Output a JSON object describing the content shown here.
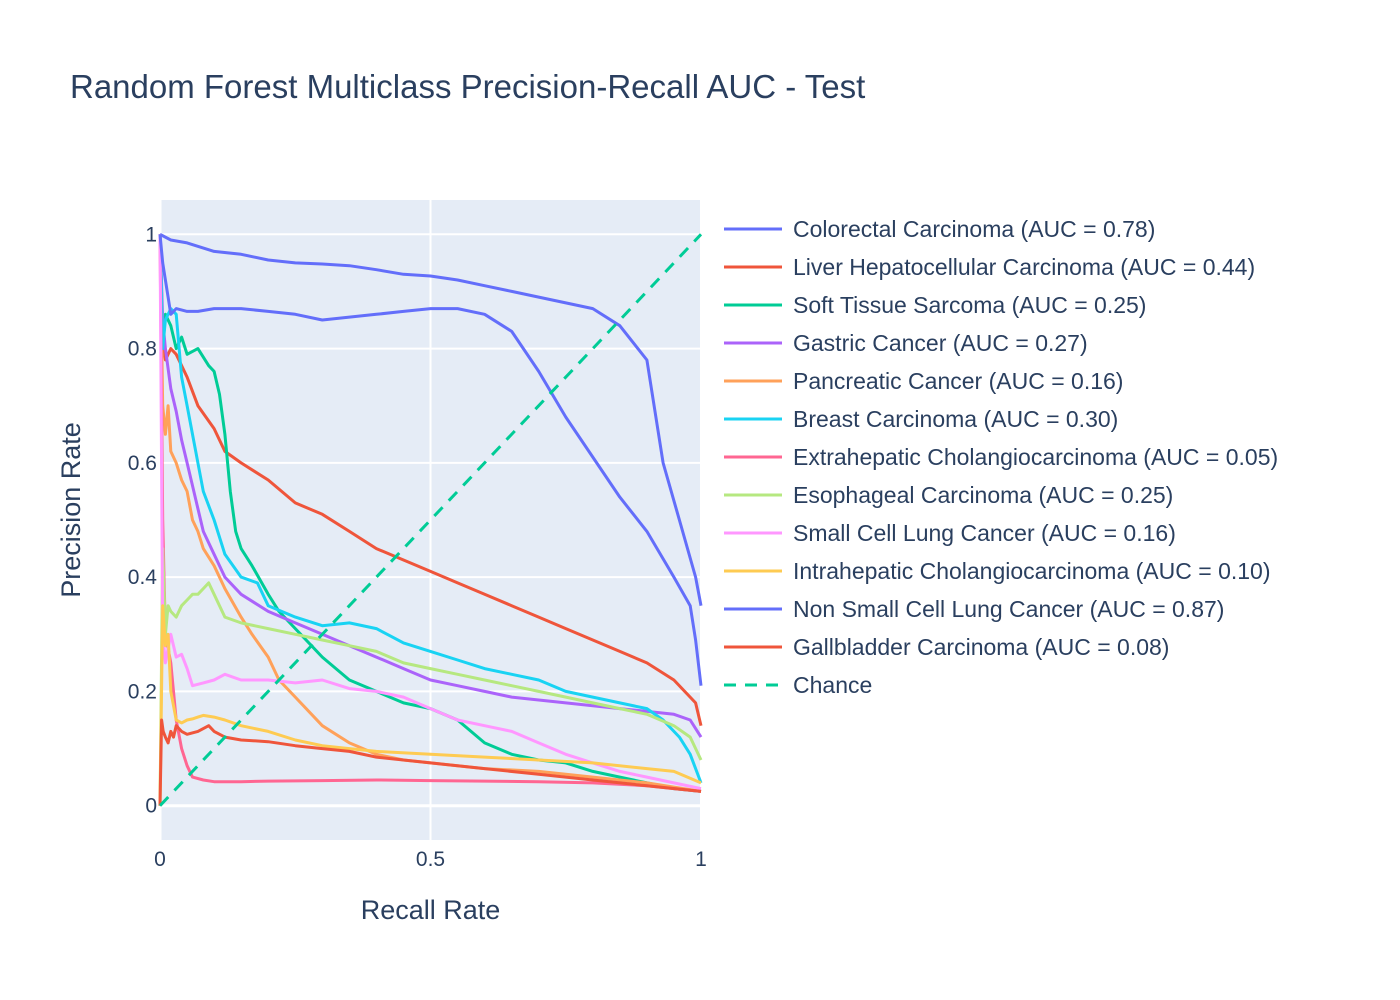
{
  "chart_data": {
    "type": "line",
    "title": "Random Forest Multiclass Precision-Recall AUC - Test",
    "xlabel": "Recall Rate",
    "ylabel": "Precision Rate",
    "xlim": [
      0,
      1
    ],
    "ylim": [
      -0.06,
      1.06
    ],
    "xticks": [
      {
        "value": 0,
        "label": "0"
      },
      {
        "value": 0.5,
        "label": "0.5"
      },
      {
        "value": 1,
        "label": "1"
      }
    ],
    "yticks": [
      {
        "value": 0,
        "label": "0"
      },
      {
        "value": 0.2,
        "label": "0.2"
      },
      {
        "value": 0.4,
        "label": "0.4"
      },
      {
        "value": 0.6,
        "label": "0.6"
      },
      {
        "value": 0.8,
        "label": "0.8"
      },
      {
        "value": 1,
        "label": "1"
      }
    ],
    "grid": true,
    "legend_position": "right",
    "plot_background": "#e5ecf6",
    "series": [
      {
        "name": "Colorectal Carcinoma (AUC = 0.78)",
        "color": "#636efa",
        "x": [
          0,
          0.02,
          0.05,
          0.1,
          0.15,
          0.2,
          0.25,
          0.3,
          0.35,
          0.4,
          0.45,
          0.5,
          0.55,
          0.6,
          0.65,
          0.7,
          0.75,
          0.8,
          0.85,
          0.9,
          0.93,
          0.96,
          0.99,
          1.0
        ],
        "y": [
          1.0,
          0.99,
          0.985,
          0.97,
          0.965,
          0.955,
          0.95,
          0.948,
          0.945,
          0.938,
          0.93,
          0.927,
          0.92,
          0.91,
          0.9,
          0.89,
          0.88,
          0.87,
          0.84,
          0.78,
          0.6,
          0.5,
          0.4,
          0.35
        ]
      },
      {
        "name": "Liver Hepatocellular Carcinoma (AUC = 0.44)",
        "color": "#ef553b",
        "x": [
          0,
          0.005,
          0.01,
          0.02,
          0.03,
          0.05,
          0.07,
          0.1,
          0.12,
          0.15,
          0.2,
          0.25,
          0.3,
          0.35,
          0.4,
          0.45,
          0.5,
          0.55,
          0.6,
          0.65,
          0.7,
          0.75,
          0.8,
          0.85,
          0.9,
          0.95,
          0.99,
          1.0
        ],
        "y": [
          1.0,
          0.82,
          0.78,
          0.8,
          0.79,
          0.75,
          0.7,
          0.66,
          0.62,
          0.6,
          0.57,
          0.53,
          0.51,
          0.48,
          0.45,
          0.43,
          0.41,
          0.39,
          0.37,
          0.35,
          0.33,
          0.31,
          0.29,
          0.27,
          0.25,
          0.22,
          0.18,
          0.14
        ]
      },
      {
        "name": "Soft Tissue Sarcoma (AUC = 0.25)",
        "color": "#00cc96",
        "x": [
          0,
          0.005,
          0.01,
          0.02,
          0.03,
          0.04,
          0.05,
          0.07,
          0.09,
          0.1,
          0.11,
          0.12,
          0.13,
          0.14,
          0.15,
          0.17,
          0.2,
          0.22,
          0.25,
          0.3,
          0.35,
          0.4,
          0.45,
          0.5,
          0.55,
          0.6,
          0.65,
          0.7,
          0.75,
          0.8,
          0.85,
          0.9,
          0.95,
          1.0
        ],
        "y": [
          1.0,
          0.82,
          0.86,
          0.84,
          0.8,
          0.82,
          0.79,
          0.8,
          0.77,
          0.76,
          0.72,
          0.65,
          0.55,
          0.48,
          0.45,
          0.42,
          0.37,
          0.34,
          0.31,
          0.26,
          0.22,
          0.2,
          0.18,
          0.17,
          0.15,
          0.11,
          0.09,
          0.08,
          0.075,
          0.06,
          0.05,
          0.04,
          0.03,
          0.025
        ]
      },
      {
        "name": "Gastric Cancer (AUC = 0.27)",
        "color": "#ab63fa",
        "x": [
          0,
          0.005,
          0.01,
          0.02,
          0.03,
          0.04,
          0.05,
          0.06,
          0.07,
          0.08,
          0.1,
          0.12,
          0.15,
          0.2,
          0.25,
          0.3,
          0.35,
          0.4,
          0.45,
          0.5,
          0.55,
          0.6,
          0.65,
          0.7,
          0.75,
          0.8,
          0.85,
          0.9,
          0.95,
          0.98,
          1.0
        ],
        "y": [
          1.0,
          0.85,
          0.8,
          0.73,
          0.69,
          0.64,
          0.6,
          0.56,
          0.52,
          0.48,
          0.44,
          0.4,
          0.37,
          0.34,
          0.32,
          0.3,
          0.28,
          0.26,
          0.24,
          0.22,
          0.21,
          0.2,
          0.19,
          0.185,
          0.18,
          0.175,
          0.17,
          0.165,
          0.16,
          0.15,
          0.12
        ]
      },
      {
        "name": "Pancreatic Cancer (AUC = 0.16)",
        "color": "#ffa15a",
        "x": [
          0,
          0.005,
          0.01,
          0.015,
          0.02,
          0.03,
          0.04,
          0.05,
          0.06,
          0.07,
          0.08,
          0.1,
          0.12,
          0.15,
          0.17,
          0.2,
          0.22,
          0.25,
          0.3,
          0.35,
          0.4,
          0.45,
          0.5,
          0.55,
          0.6,
          0.7,
          0.8,
          0.9,
          1.0
        ],
        "y": [
          1.0,
          0.7,
          0.65,
          0.7,
          0.62,
          0.6,
          0.57,
          0.55,
          0.5,
          0.48,
          0.45,
          0.42,
          0.38,
          0.33,
          0.3,
          0.26,
          0.22,
          0.19,
          0.14,
          0.11,
          0.09,
          0.08,
          0.075,
          0.07,
          0.065,
          0.06,
          0.05,
          0.04,
          0.025
        ]
      },
      {
        "name": "Breast Carcinoma (AUC = 0.30)",
        "color": "#19d3f3",
        "x": [
          0,
          0.005,
          0.01,
          0.02,
          0.03,
          0.04,
          0.05,
          0.06,
          0.07,
          0.08,
          0.1,
          0.12,
          0.15,
          0.18,
          0.2,
          0.25,
          0.3,
          0.35,
          0.4,
          0.45,
          0.5,
          0.55,
          0.6,
          0.65,
          0.7,
          0.75,
          0.8,
          0.85,
          0.9,
          0.93,
          0.96,
          0.98,
          1.0
        ],
        "y": [
          1.0,
          0.8,
          0.85,
          0.87,
          0.86,
          0.75,
          0.7,
          0.65,
          0.6,
          0.55,
          0.5,
          0.44,
          0.4,
          0.39,
          0.35,
          0.33,
          0.315,
          0.32,
          0.31,
          0.285,
          0.27,
          0.255,
          0.24,
          0.23,
          0.22,
          0.2,
          0.19,
          0.18,
          0.17,
          0.15,
          0.12,
          0.09,
          0.04
        ]
      },
      {
        "name": "Extrahepatic Cholangiocarcinoma (AUC = 0.05)",
        "color": "#ff6692",
        "x": [
          0,
          0.005,
          0.01,
          0.02,
          0.03,
          0.04,
          0.05,
          0.06,
          0.08,
          0.1,
          0.15,
          0.2,
          0.3,
          0.4,
          0.5,
          0.6,
          0.7,
          0.8,
          0.9,
          0.95,
          1.0
        ],
        "y": [
          1.0,
          0.5,
          0.3,
          0.25,
          0.15,
          0.1,
          0.07,
          0.05,
          0.045,
          0.042,
          0.042,
          0.043,
          0.044,
          0.045,
          0.044,
          0.043,
          0.042,
          0.04,
          0.035,
          0.03,
          0.025
        ]
      },
      {
        "name": "Esophageal Carcinoma (AUC = 0.25)",
        "color": "#b6e880",
        "x": [
          0,
          0.005,
          0.01,
          0.015,
          0.02,
          0.03,
          0.04,
          0.05,
          0.06,
          0.07,
          0.08,
          0.09,
          0.1,
          0.12,
          0.15,
          0.2,
          0.25,
          0.3,
          0.35,
          0.4,
          0.45,
          0.5,
          0.55,
          0.6,
          0.65,
          0.7,
          0.75,
          0.8,
          0.85,
          0.9,
          0.95,
          0.98,
          1.0
        ],
        "y": [
          0.0,
          0.45,
          0.3,
          0.35,
          0.34,
          0.33,
          0.35,
          0.36,
          0.37,
          0.37,
          0.38,
          0.39,
          0.37,
          0.33,
          0.32,
          0.31,
          0.3,
          0.29,
          0.28,
          0.27,
          0.25,
          0.24,
          0.23,
          0.22,
          0.21,
          0.2,
          0.19,
          0.18,
          0.17,
          0.16,
          0.14,
          0.12,
          0.08
        ]
      },
      {
        "name": "Small Cell Lung Cancer (AUC = 0.16)",
        "color": "#ff97ff",
        "x": [
          0,
          0.005,
          0.01,
          0.02,
          0.03,
          0.04,
          0.05,
          0.06,
          0.08,
          0.1,
          0.12,
          0.15,
          0.2,
          0.25,
          0.3,
          0.35,
          0.4,
          0.45,
          0.5,
          0.55,
          0.6,
          0.65,
          0.7,
          0.75,
          0.8,
          0.85,
          0.9,
          0.95,
          1.0
        ],
        "y": [
          1.0,
          0.3,
          0.25,
          0.3,
          0.26,
          0.265,
          0.24,
          0.21,
          0.215,
          0.22,
          0.23,
          0.22,
          0.22,
          0.215,
          0.22,
          0.205,
          0.2,
          0.19,
          0.17,
          0.15,
          0.14,
          0.13,
          0.11,
          0.09,
          0.075,
          0.06,
          0.05,
          0.04,
          0.03
        ]
      },
      {
        "name": "Intrahepatic Cholangiocarcinoma (AUC = 0.10)",
        "color": "#fecb52",
        "x": [
          0,
          0.005,
          0.01,
          0.015,
          0.02,
          0.03,
          0.04,
          0.05,
          0.06,
          0.07,
          0.08,
          0.1,
          0.12,
          0.15,
          0.2,
          0.25,
          0.3,
          0.35,
          0.4,
          0.5,
          0.6,
          0.7,
          0.8,
          0.9,
          0.95,
          1.0
        ],
        "y": [
          0.0,
          0.35,
          0.28,
          0.3,
          0.2,
          0.15,
          0.145,
          0.15,
          0.152,
          0.155,
          0.158,
          0.155,
          0.15,
          0.14,
          0.13,
          0.115,
          0.105,
          0.1,
          0.095,
          0.09,
          0.085,
          0.08,
          0.075,
          0.065,
          0.06,
          0.04
        ]
      },
      {
        "name": "Non Small Cell Lung Cancer (AUC = 0.87)",
        "color": "#636efa",
        "x": [
          0,
          0.005,
          0.01,
          0.015,
          0.02,
          0.03,
          0.05,
          0.07,
          0.1,
          0.15,
          0.2,
          0.25,
          0.3,
          0.35,
          0.4,
          0.45,
          0.5,
          0.55,
          0.6,
          0.65,
          0.7,
          0.75,
          0.8,
          0.85,
          0.9,
          0.95,
          0.98,
          0.99,
          1.0
        ],
        "y": [
          1.0,
          0.95,
          0.92,
          0.89,
          0.86,
          0.87,
          0.865,
          0.865,
          0.87,
          0.87,
          0.865,
          0.86,
          0.85,
          0.855,
          0.86,
          0.865,
          0.87,
          0.87,
          0.86,
          0.83,
          0.76,
          0.68,
          0.61,
          0.54,
          0.48,
          0.4,
          0.35,
          0.29,
          0.21
        ]
      },
      {
        "name": "Gallbladder Carcinoma (AUC = 0.08)",
        "color": "#ef553b",
        "x": [
          0,
          0.003,
          0.006,
          0.01,
          0.015,
          0.02,
          0.025,
          0.03,
          0.04,
          0.05,
          0.07,
          0.09,
          0.1,
          0.12,
          0.15,
          0.2,
          0.25,
          0.3,
          0.35,
          0.4,
          0.5,
          0.6,
          0.7,
          0.8,
          0.9,
          1.0
        ],
        "y": [
          0.0,
          0.15,
          0.13,
          0.12,
          0.11,
          0.13,
          0.12,
          0.14,
          0.13,
          0.125,
          0.13,
          0.14,
          0.13,
          0.12,
          0.115,
          0.112,
          0.105,
          0.1,
          0.095,
          0.085,
          0.075,
          0.065,
          0.055,
          0.045,
          0.035,
          0.025
        ]
      },
      {
        "name": "Chance",
        "color": "#00cc96",
        "dash": true,
        "x": [
          0,
          1
        ],
        "y": [
          0,
          1
        ]
      }
    ]
  }
}
